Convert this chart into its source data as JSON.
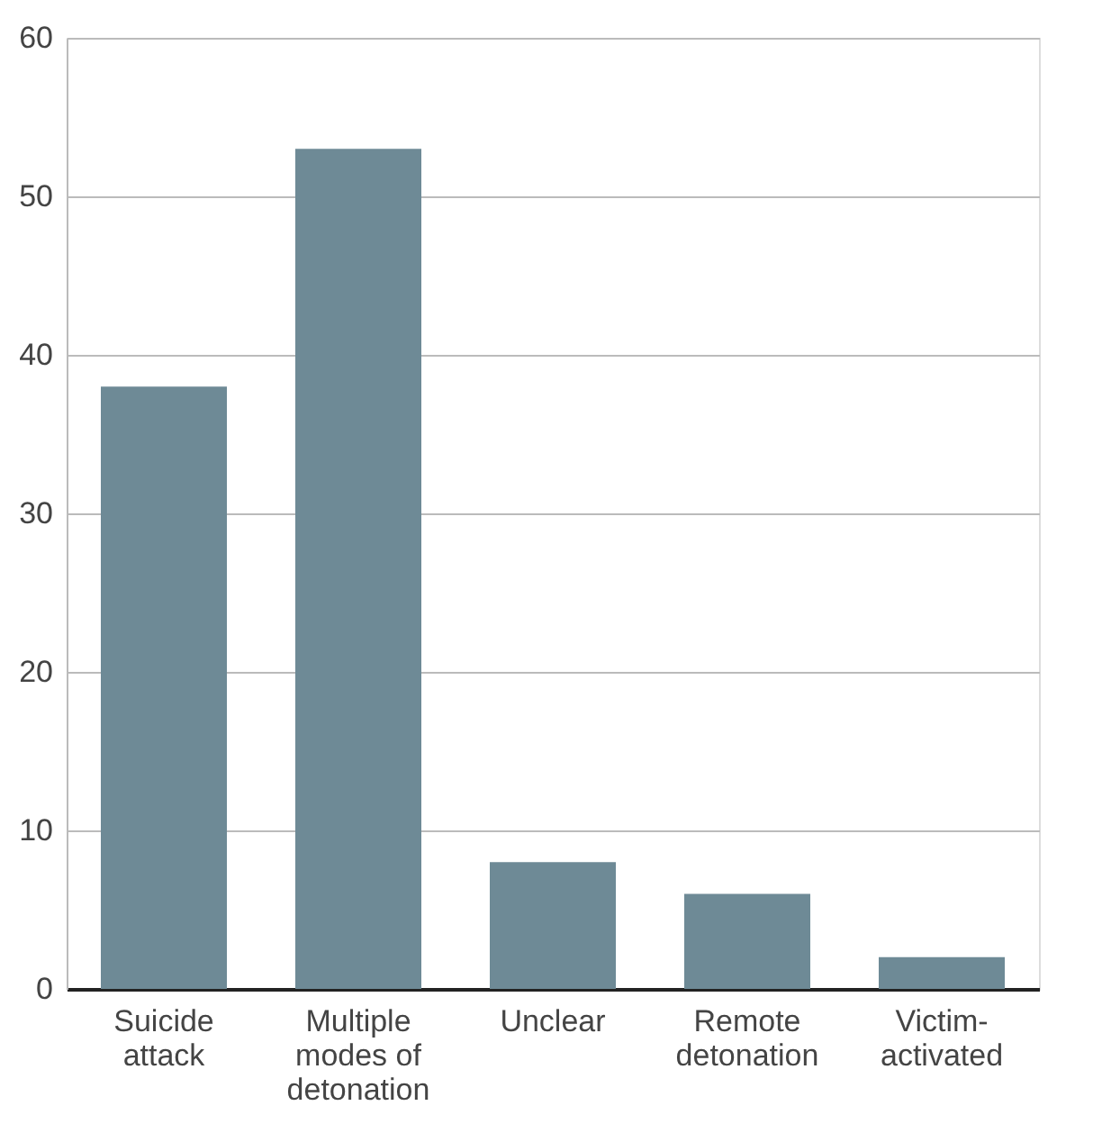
{
  "chart_data": {
    "type": "bar",
    "categories": [
      "Suicide attack",
      "Multiple modes of detonation",
      "Unclear",
      "Remote detonation",
      "Victim-activated"
    ],
    "values": [
      38,
      53,
      8,
      6,
      2
    ],
    "color": "#6e8a96",
    "ylim": [
      0,
      60
    ],
    "yticks": [
      0,
      10,
      20,
      30,
      40,
      50,
      60
    ],
    "grid": "y"
  }
}
